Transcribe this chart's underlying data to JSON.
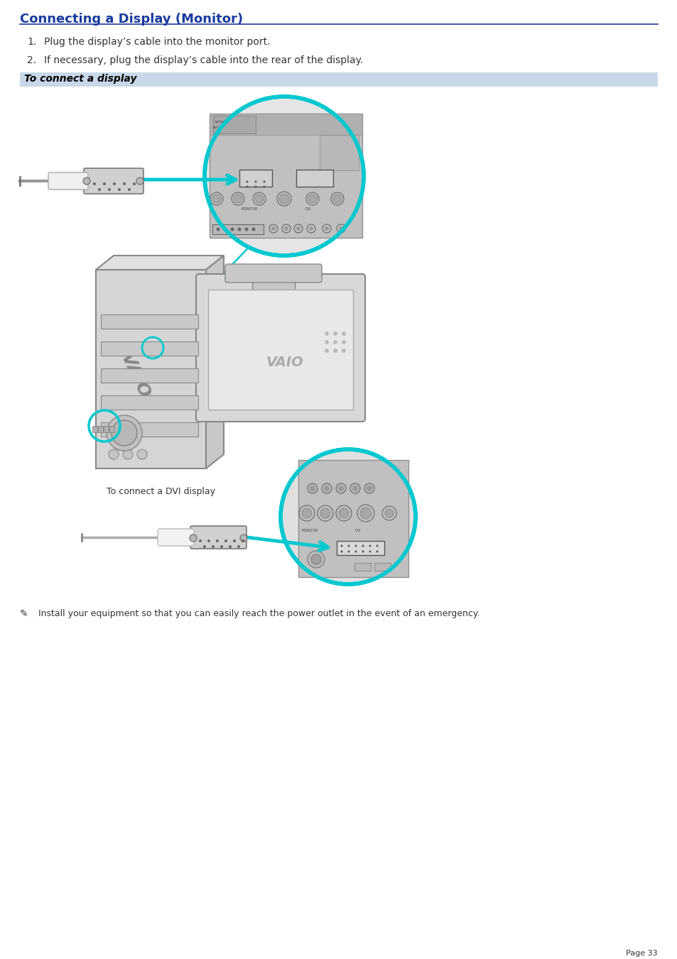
{
  "title": "Connecting a Display (Monitor)",
  "title_color": "#1a3a9e",
  "title_fontsize": 13,
  "line_color": "#1a3a9e",
  "background_color": "#ffffff",
  "step1": "Plug the display’s cable into the monitor port.",
  "step2": "If necessary, plug the display’s cable into the rear of the display.",
  "section_label": "To connect a display",
  "section_bg": "#c8d8e8",
  "body_fontsize": 10,
  "note_symbol": "℠",
  "note_text": " Install your equipment so that you can easily reach the power outlet in the event of an emergency.",
  "note_fontsize": 9,
  "page_text": "Page 33",
  "page_fontsize": 8,
  "dvi_label": "To connect a DVI display",
  "dvi_label_fontsize": 9,
  "cyan": "#00c8d0",
  "gray_light": "#d8d8d8",
  "gray_mid": "#b8b8b8",
  "gray_dark": "#888888"
}
